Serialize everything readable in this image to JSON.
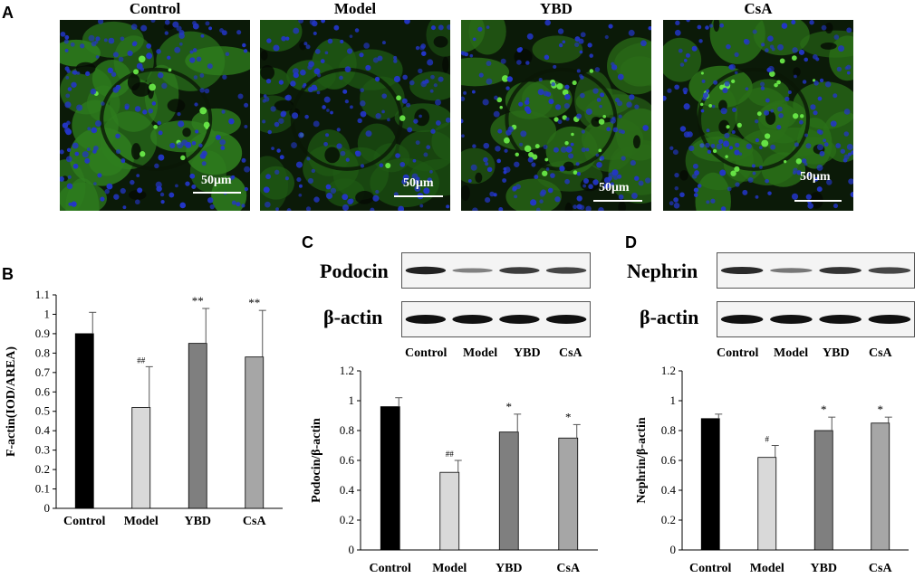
{
  "panels": {
    "A": "A",
    "B": "B",
    "C": "C",
    "D": "D"
  },
  "micrographs": [
    {
      "title": "Control",
      "scale": "50μm",
      "green": "#2e7d1e",
      "blue": "#2336c8"
    },
    {
      "title": "Model",
      "scale": "50μm",
      "green": "#1f5a14",
      "blue": "#2336c8"
    },
    {
      "title": "YBD",
      "scale": "50μm",
      "green": "#2a6b18",
      "blue": "#2336c8"
    },
    {
      "title": "CsA",
      "scale": "50μm",
      "green": "#2a7018",
      "blue": "#2336c8"
    }
  ],
  "blots": {
    "C": {
      "target": "Podocin",
      "loading": "β-actin",
      "lanes": [
        "Control",
        "Model",
        "YBD",
        "CsA"
      ],
      "target_intensity": [
        0.9,
        0.35,
        0.75,
        0.7
      ]
    },
    "D": {
      "target": "Nephrin",
      "loading": "β-actin",
      "lanes": [
        "Control",
        "Model",
        "YBD",
        "CsA"
      ],
      "target_intensity": [
        0.85,
        0.4,
        0.8,
        0.7
      ]
    }
  },
  "chart_data": [
    {
      "id": "B",
      "type": "bar",
      "categories": [
        "Control",
        "Model",
        "YBD",
        "CsA"
      ],
      "values": [
        0.9,
        0.52,
        0.85,
        0.78
      ],
      "errors": [
        0.11,
        0.21,
        0.18,
        0.24
      ],
      "annotations": [
        "",
        "##",
        "**",
        "**"
      ],
      "ylabel": "F-actin(IOD/AREA)",
      "ylim": [
        0,
        1.1
      ],
      "yticks": [
        0,
        0.1,
        0.2,
        0.3,
        0.4,
        0.5,
        0.6,
        0.7,
        0.8,
        0.9,
        1,
        1.1
      ],
      "colors": [
        "#000000",
        "#d9d9d9",
        "#7f7f7f",
        "#a6a6a6"
      ]
    },
    {
      "id": "C",
      "type": "bar",
      "categories": [
        "Control",
        "Model",
        "YBD",
        "CsA"
      ],
      "values": [
        0.96,
        0.52,
        0.79,
        0.75
      ],
      "errors": [
        0.06,
        0.08,
        0.12,
        0.09
      ],
      "annotations": [
        "",
        "##",
        "*",
        "*"
      ],
      "ylabel": "Podocin/β-actin",
      "ylim": [
        0,
        1.2
      ],
      "yticks": [
        0,
        0.2,
        0.4,
        0.6,
        0.8,
        1,
        1.2
      ],
      "colors": [
        "#000000",
        "#d9d9d9",
        "#7f7f7f",
        "#a6a6a6"
      ]
    },
    {
      "id": "D",
      "type": "bar",
      "categories": [
        "Control",
        "Model",
        "YBD",
        "CsA"
      ],
      "values": [
        0.88,
        0.62,
        0.8,
        0.85
      ],
      "errors": [
        0.03,
        0.08,
        0.09,
        0.04
      ],
      "annotations": [
        "",
        "#",
        "*",
        "*"
      ],
      "ylabel": "Nephrin/β-actin",
      "ylim": [
        0,
        1.2
      ],
      "yticks": [
        0,
        0.2,
        0.4,
        0.6,
        0.8,
        1,
        1.2
      ],
      "colors": [
        "#000000",
        "#d9d9d9",
        "#7f7f7f",
        "#a6a6a6"
      ]
    }
  ]
}
